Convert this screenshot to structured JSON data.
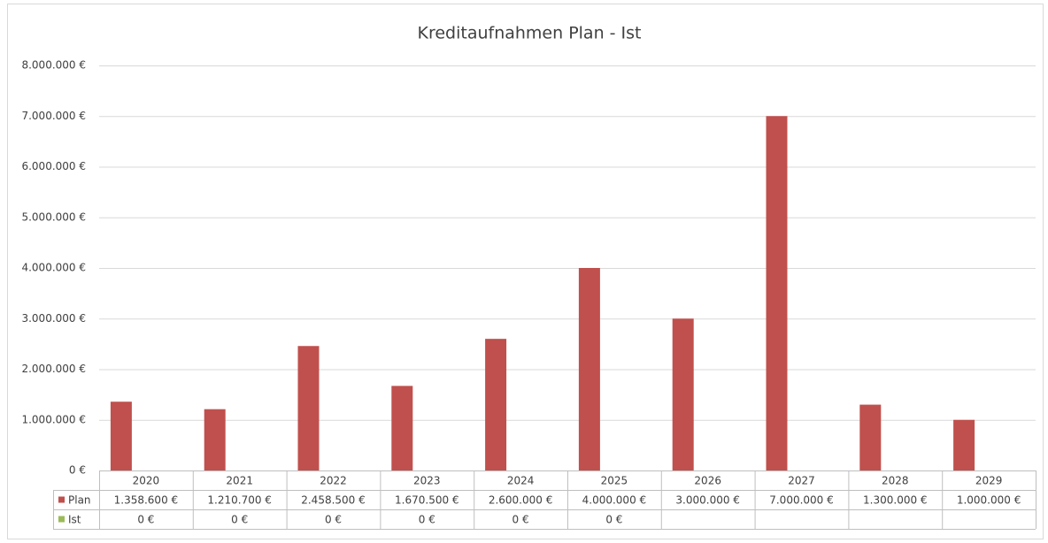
{
  "chart_data": {
    "type": "bar",
    "title": "Kreditaufnahmen Plan - Ist",
    "categories": [
      "2020",
      "2021",
      "2022",
      "2023",
      "2024",
      "2025",
      "2026",
      "2027",
      "2028",
      "2029"
    ],
    "series": [
      {
        "name": "Plan",
        "color": "#c0504d",
        "values": [
          1358600,
          1210700,
          2458500,
          1670500,
          2600000,
          4000000,
          3000000,
          7000000,
          1300000,
          1000000
        ],
        "value_labels": [
          "1.358.600 €",
          "1.210.700 €",
          "2.458.500 €",
          "1.670.500 €",
          "2.600.000 €",
          "4.000.000 €",
          "3.000.000 €",
          "7.000.000 €",
          "1.300.000 €",
          "1.000.000 €"
        ]
      },
      {
        "name": "Ist",
        "color": "#9bbb59",
        "values": [
          0,
          0,
          0,
          0,
          0,
          0,
          null,
          null,
          null,
          null
        ],
        "value_labels": [
          "0 €",
          "0 €",
          "0 €",
          "0 €",
          "0 €",
          "0 €",
          null,
          null,
          null,
          null
        ]
      }
    ],
    "ylim": [
      0,
      8000000
    ],
    "yticks": [
      {
        "value": 0,
        "label": "0 €"
      },
      {
        "value": 1000000,
        "label": "1.000.000 €"
      },
      {
        "value": 2000000,
        "label": "2.000.000 €"
      },
      {
        "value": 3000000,
        "label": "3.000.000 €"
      },
      {
        "value": 4000000,
        "label": "4.000.000 €"
      },
      {
        "value": 5000000,
        "label": "5.000.000 €"
      },
      {
        "value": 6000000,
        "label": "6.000.000 €"
      },
      {
        "value": 7000000,
        "label": "7.000.000 €"
      },
      {
        "value": 8000000,
        "label": "8.000.000 €"
      }
    ],
    "grid": true
  }
}
